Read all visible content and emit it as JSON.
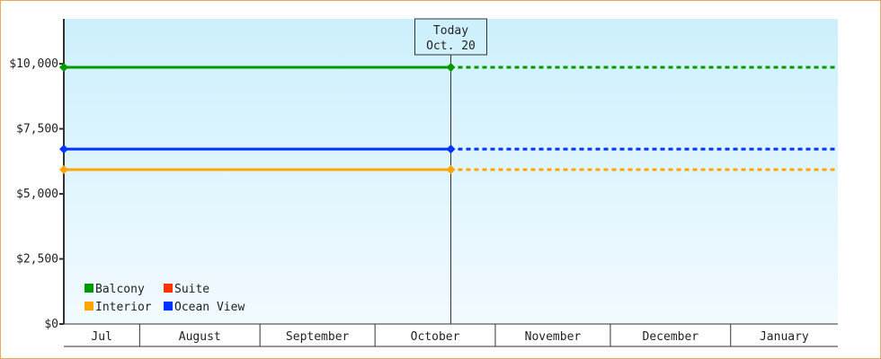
{
  "chart_data": {
    "type": "line",
    "y_ticks": [
      "$0",
      "$2,500",
      "$5,000",
      "$7,500",
      "$10,000"
    ],
    "y_tick_values": [
      0,
      2500,
      5000,
      7500,
      10000
    ],
    "ylim": [
      0,
      12000
    ],
    "months": [
      "Jul",
      "August",
      "September",
      "October",
      "November",
      "December",
      "January"
    ],
    "month_start_days": [
      0,
      29,
      75,
      119,
      165,
      209,
      255,
      296
    ],
    "today": {
      "label": "Today",
      "date": "Oct. 20",
      "day": 148
    },
    "series": [
      {
        "name": "Balcony",
        "color": "#009900",
        "value": 9860,
        "points": [
          [
            0,
            9860
          ],
          [
            148,
            9860
          ]
        ],
        "projected_to": 296
      },
      {
        "name": "Suite",
        "color": "#ff3300",
        "value": null,
        "points": []
      },
      {
        "name": "Interior",
        "color": "#ffa500",
        "value": 5930,
        "points": [
          [
            0,
            5930
          ],
          [
            148,
            5930
          ]
        ],
        "projected_to": 296
      },
      {
        "name": "Ocean View",
        "color": "#0033ff",
        "value": 6720,
        "points": [
          [
            0,
            6720
          ],
          [
            148,
            6720
          ]
        ],
        "projected_to": 296
      }
    ],
    "legend": {
      "placement": "bottom-left",
      "order": [
        "Balcony",
        "Suite",
        "Interior",
        "Ocean View"
      ]
    },
    "background_gradient": [
      "#ccf0fc",
      "#f2faff"
    ]
  }
}
